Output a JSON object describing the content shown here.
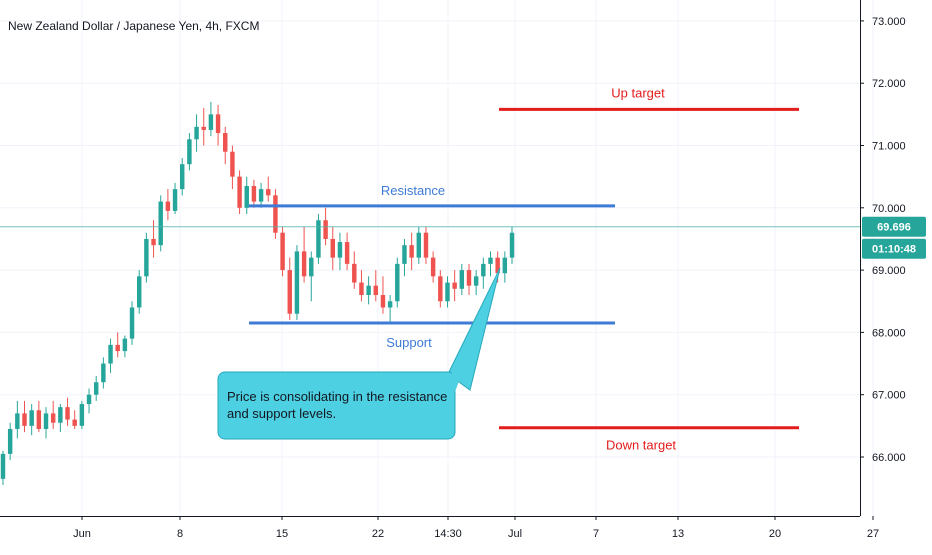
{
  "chart_data": {
    "type": "candlestick",
    "title": "New Zealand Dollar / Japanese Yen, 4h, FXCM",
    "ylim": [
      65.25,
      73.3
    ],
    "y_ticks": [
      66.0,
      67.0,
      68.0,
      69.0,
      70.0,
      71.0,
      72.0,
      73.0
    ],
    "y_tick_labels": [
      "66.000",
      "67.000",
      "68.000",
      "69.000",
      "70.000",
      "71.000",
      "72.000",
      "73.000"
    ],
    "x_ticks": [
      "Jun",
      "8",
      "15",
      "22",
      "14:30",
      "Jul",
      "7",
      "13",
      "20",
      "27"
    ],
    "grid": true,
    "last_price": 69.696,
    "last_price_label": "69.696",
    "countdown_label": "01:10:48",
    "colors": {
      "up": "#26a69a",
      "down": "#ef5350",
      "support_resistance": "#3d7bd6",
      "targets": "#e31c1c",
      "callout": "#4dd0e1"
    },
    "annotations": {
      "resistance": {
        "label": "Resistance",
        "value": 70.03
      },
      "support": {
        "label": "Support",
        "value": 68.15
      },
      "up_target": {
        "label": "Up target",
        "value": 71.58
      },
      "down_target": {
        "label": "Down target",
        "value": 66.47
      },
      "callout": [
        "Price is consolidating in the resistance",
        "and support levels."
      ]
    },
    "candles": [
      {
        "o": 65.65,
        "h": 66.1,
        "l": 65.55,
        "c": 66.05
      },
      {
        "o": 66.05,
        "h": 66.55,
        "l": 65.95,
        "c": 66.45
      },
      {
        "o": 66.45,
        "h": 66.9,
        "l": 66.3,
        "c": 66.7
      },
      {
        "o": 66.7,
        "h": 66.9,
        "l": 66.4,
        "c": 66.5
      },
      {
        "o": 66.5,
        "h": 66.85,
        "l": 66.35,
        "c": 66.75
      },
      {
        "o": 66.75,
        "h": 66.9,
        "l": 66.4,
        "c": 66.45
      },
      {
        "o": 66.45,
        "h": 66.8,
        "l": 66.3,
        "c": 66.7
      },
      {
        "o": 66.7,
        "h": 66.9,
        "l": 66.45,
        "c": 66.55
      },
      {
        "o": 66.55,
        "h": 66.85,
        "l": 66.4,
        "c": 66.8
      },
      {
        "o": 66.8,
        "h": 66.95,
        "l": 66.5,
        "c": 66.6
      },
      {
        "o": 66.6,
        "h": 66.75,
        "l": 66.45,
        "c": 66.5
      },
      {
        "o": 66.5,
        "h": 66.9,
        "l": 66.45,
        "c": 66.85
      },
      {
        "o": 66.85,
        "h": 67.1,
        "l": 66.7,
        "c": 67.0
      },
      {
        "o": 67.0,
        "h": 67.3,
        "l": 66.9,
        "c": 67.2
      },
      {
        "o": 67.2,
        "h": 67.6,
        "l": 67.1,
        "c": 67.5
      },
      {
        "o": 67.5,
        "h": 67.9,
        "l": 67.35,
        "c": 67.8
      },
      {
        "o": 67.8,
        "h": 68.0,
        "l": 67.6,
        "c": 67.7
      },
      {
        "o": 67.7,
        "h": 67.95,
        "l": 67.6,
        "c": 67.9
      },
      {
        "o": 67.9,
        "h": 68.5,
        "l": 67.8,
        "c": 68.4
      },
      {
        "o": 68.4,
        "h": 69.0,
        "l": 68.3,
        "c": 68.9
      },
      {
        "o": 68.9,
        "h": 69.6,
        "l": 68.8,
        "c": 69.5
      },
      {
        "o": 69.5,
        "h": 69.8,
        "l": 69.2,
        "c": 69.4
      },
      {
        "o": 69.4,
        "h": 70.2,
        "l": 69.3,
        "c": 70.1
      },
      {
        "o": 70.1,
        "h": 70.3,
        "l": 69.8,
        "c": 69.95
      },
      {
        "o": 69.95,
        "h": 70.4,
        "l": 69.9,
        "c": 70.3
      },
      {
        "o": 70.3,
        "h": 70.8,
        "l": 70.2,
        "c": 70.7
      },
      {
        "o": 70.7,
        "h": 71.2,
        "l": 70.6,
        "c": 71.1
      },
      {
        "o": 71.1,
        "h": 71.5,
        "l": 70.9,
        "c": 71.3
      },
      {
        "o": 71.3,
        "h": 71.6,
        "l": 71.0,
        "c": 71.25
      },
      {
        "o": 71.25,
        "h": 71.7,
        "l": 71.15,
        "c": 71.5
      },
      {
        "o": 71.5,
        "h": 71.65,
        "l": 71.0,
        "c": 71.2
      },
      {
        "o": 71.2,
        "h": 71.3,
        "l": 70.7,
        "c": 70.9
      },
      {
        "o": 70.9,
        "h": 71.0,
        "l": 70.3,
        "c": 70.5
      },
      {
        "o": 70.5,
        "h": 70.6,
        "l": 69.9,
        "c": 70.0
      },
      {
        "o": 70.0,
        "h": 70.5,
        "l": 69.9,
        "c": 70.35
      },
      {
        "o": 70.35,
        "h": 70.45,
        "l": 70.0,
        "c": 70.1
      },
      {
        "o": 70.1,
        "h": 70.4,
        "l": 70.0,
        "c": 70.3
      },
      {
        "o": 70.3,
        "h": 70.5,
        "l": 70.1,
        "c": 70.2
      },
      {
        "o": 70.2,
        "h": 70.3,
        "l": 69.5,
        "c": 69.6
      },
      {
        "o": 69.6,
        "h": 69.7,
        "l": 68.9,
        "c": 69.0
      },
      {
        "o": 69.0,
        "h": 69.2,
        "l": 68.2,
        "c": 68.3
      },
      {
        "o": 68.3,
        "h": 69.4,
        "l": 68.2,
        "c": 69.3
      },
      {
        "o": 69.3,
        "h": 69.7,
        "l": 68.8,
        "c": 68.9
      },
      {
        "o": 68.9,
        "h": 69.3,
        "l": 68.5,
        "c": 69.2
      },
      {
        "o": 69.2,
        "h": 69.9,
        "l": 69.1,
        "c": 69.8
      },
      {
        "o": 69.8,
        "h": 70.0,
        "l": 69.4,
        "c": 69.5
      },
      {
        "o": 69.5,
        "h": 69.7,
        "l": 69.0,
        "c": 69.2
      },
      {
        "o": 69.2,
        "h": 69.6,
        "l": 69.0,
        "c": 69.45
      },
      {
        "o": 69.45,
        "h": 69.6,
        "l": 69.0,
        "c": 69.1
      },
      {
        "o": 69.1,
        "h": 69.3,
        "l": 68.7,
        "c": 68.8
      },
      {
        "o": 68.8,
        "h": 69.0,
        "l": 68.5,
        "c": 68.6
      },
      {
        "o": 68.6,
        "h": 68.9,
        "l": 68.45,
        "c": 68.75
      },
      {
        "o": 68.75,
        "h": 69.0,
        "l": 68.5,
        "c": 68.6
      },
      {
        "o": 68.6,
        "h": 68.9,
        "l": 68.3,
        "c": 68.4
      },
      {
        "o": 68.4,
        "h": 68.6,
        "l": 68.15,
        "c": 68.5
      },
      {
        "o": 68.5,
        "h": 69.2,
        "l": 68.4,
        "c": 69.1
      },
      {
        "o": 69.1,
        "h": 69.5,
        "l": 68.9,
        "c": 69.4
      },
      {
        "o": 69.4,
        "h": 69.6,
        "l": 69.0,
        "c": 69.2
      },
      {
        "o": 69.2,
        "h": 69.7,
        "l": 69.1,
        "c": 69.6
      },
      {
        "o": 69.6,
        "h": 69.7,
        "l": 69.1,
        "c": 69.2
      },
      {
        "o": 69.2,
        "h": 69.3,
        "l": 68.8,
        "c": 68.9
      },
      {
        "o": 68.9,
        "h": 69.0,
        "l": 68.4,
        "c": 68.5
      },
      {
        "o": 68.5,
        "h": 68.9,
        "l": 68.4,
        "c": 68.8
      },
      {
        "o": 68.8,
        "h": 69.0,
        "l": 68.5,
        "c": 68.7
      },
      {
        "o": 68.7,
        "h": 69.1,
        "l": 68.6,
        "c": 69.0
      },
      {
        "o": 69.0,
        "h": 69.1,
        "l": 68.6,
        "c": 68.75
      },
      {
        "o": 68.75,
        "h": 69.0,
        "l": 68.6,
        "c": 68.9
      },
      {
        "o": 68.9,
        "h": 69.2,
        "l": 68.7,
        "c": 69.1
      },
      {
        "o": 69.1,
        "h": 69.3,
        "l": 68.9,
        "c": 69.2
      },
      {
        "o": 69.2,
        "h": 69.3,
        "l": 68.8,
        "c": 68.95
      },
      {
        "o": 68.95,
        "h": 69.3,
        "l": 68.8,
        "c": 69.2
      },
      {
        "o": 69.2,
        "h": 69.7,
        "l": 69.1,
        "c": 69.6
      }
    ]
  }
}
